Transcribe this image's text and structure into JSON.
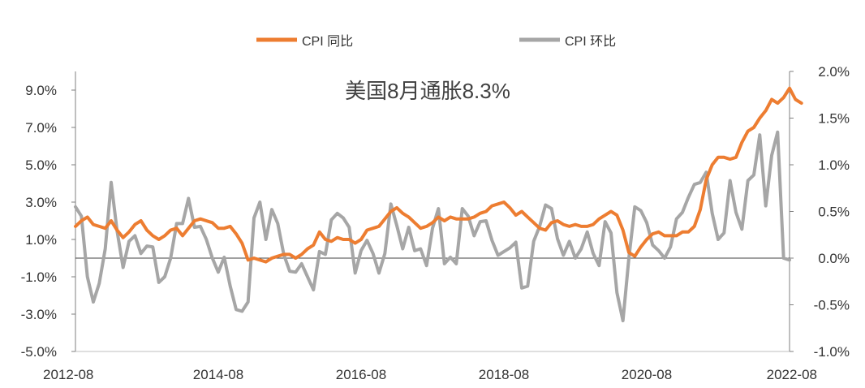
{
  "chart_data": {
    "type": "line",
    "title": "美国8月通胀8.3%",
    "legend_position": "top-center",
    "grid": false,
    "x_tick_labels": [
      "2012-08",
      "2014-08",
      "2016-08",
      "2018-08",
      "2020-08",
      "2022-08"
    ],
    "x_range": [
      "2012-08",
      "2022-08"
    ],
    "y_left": {
      "range": [
        -5.0,
        10.0
      ],
      "ticks": [
        9.0,
        7.0,
        5.0,
        3.0,
        1.0,
        -1.0,
        -3.0,
        -5.0
      ],
      "tick_labels": [
        "9.0%",
        "7.0%",
        "5.0%",
        "3.0%",
        "1.0%",
        "-1.0%",
        "-3.0%",
        "-5.0%"
      ]
    },
    "y_right": {
      "range": [
        -1.0,
        2.0
      ],
      "ticks": [
        2.0,
        1.5,
        1.0,
        0.5,
        0.0,
        -0.5,
        -1.0
      ],
      "tick_labels": [
        "2.0%",
        "1.5%",
        "1.0%",
        "0.5%",
        "0.0%",
        "-0.5%",
        "-1.0%"
      ]
    },
    "series": [
      {
        "name": "CPI 同比",
        "axis": "left",
        "color": "#ED7D31",
        "start": "2012-08",
        "values": [
          1.7,
          2.0,
          2.2,
          1.8,
          1.7,
          1.6,
          2.0,
          1.5,
          1.1,
          1.4,
          1.8,
          2.0,
          1.5,
          1.2,
          1.0,
          1.2,
          1.5,
          1.6,
          1.2,
          1.6,
          2.0,
          2.1,
          2.0,
          1.9,
          1.6,
          1.6,
          1.7,
          1.3,
          0.8,
          -0.1,
          0.0,
          -0.1,
          -0.2,
          0.0,
          0.1,
          0.2,
          0.2,
          -0.0,
          0.2,
          0.5,
          0.7,
          1.4,
          1.0,
          0.9,
          1.1,
          1.0,
          1.0,
          0.8,
          1.0,
          1.5,
          1.6,
          1.7,
          2.1,
          2.5,
          2.7,
          2.4,
          2.2,
          1.9,
          1.6,
          1.7,
          1.9,
          2.2,
          2.0,
          2.2,
          2.1,
          2.1,
          2.1,
          2.2,
          2.4,
          2.5,
          2.8,
          2.9,
          3.0,
          2.7,
          2.3,
          2.5,
          2.2,
          1.9,
          1.6,
          1.5,
          1.9,
          2.0,
          1.8,
          1.7,
          1.8,
          1.7,
          1.7,
          1.8,
          2.1,
          2.3,
          2.5,
          2.3,
          1.5,
          0.3,
          0.1,
          0.6,
          1.0,
          1.3,
          1.4,
          1.2,
          1.2,
          1.2,
          1.4,
          1.4,
          1.7,
          2.6,
          4.2,
          5.0,
          5.4,
          5.4,
          5.3,
          5.4,
          6.2,
          6.8,
          7.0,
          7.5,
          7.9,
          8.5,
          8.3,
          8.6,
          9.1,
          8.5,
          8.3
        ]
      },
      {
        "name": "CPI 环比",
        "axis": "right",
        "color": "#A6A6A6",
        "start": "2012-08",
        "values": [
          0.55,
          0.45,
          -0.2,
          -0.47,
          -0.27,
          0.1,
          0.81,
          0.29,
          -0.1,
          0.18,
          0.24,
          0.05,
          0.13,
          0.12,
          -0.26,
          -0.2,
          0.0,
          0.37,
          0.37,
          0.64,
          0.33,
          0.34,
          0.2,
          0.0,
          -0.15,
          0.01,
          -0.3,
          -0.55,
          -0.57,
          -0.47,
          0.43,
          0.6,
          0.2,
          0.52,
          0.37,
          0.04,
          -0.14,
          -0.15,
          -0.06,
          -0.2,
          -0.34,
          0.07,
          0.04,
          0.41,
          0.48,
          0.43,
          0.33,
          -0.16,
          0.08,
          0.19,
          0.05,
          -0.16,
          0.05,
          0.58,
          0.35,
          0.1,
          0.33,
          0.08,
          0.1,
          -0.08,
          0.32,
          0.53,
          -0.06,
          0.01,
          -0.06,
          0.53,
          0.45,
          0.24,
          0.39,
          0.4,
          0.19,
          0.03,
          0.07,
          0.11,
          0.17,
          -0.32,
          -0.3,
          0.18,
          0.34,
          0.57,
          0.53,
          0.21,
          0.03,
          0.18,
          0.0,
          0.1,
          0.28,
          0.05,
          -0.08,
          0.39,
          0.27,
          -0.37,
          -0.67,
          0.0,
          0.55,
          0.51,
          0.38,
          0.14,
          0.08,
          0.0,
          0.12,
          0.42,
          0.49,
          0.65,
          0.79,
          0.81,
          0.92,
          0.48,
          0.2,
          0.27,
          0.83,
          0.49,
          0.31,
          0.83,
          0.89,
          1.32,
          0.56,
          1.1,
          1.35,
          0.0,
          -0.02
        ]
      }
    ]
  }
}
